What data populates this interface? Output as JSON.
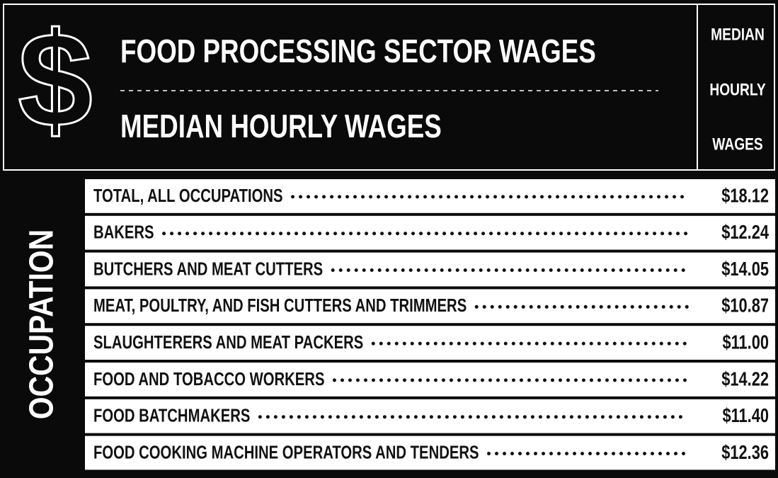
{
  "header": {
    "symbol": "$",
    "title": "FOOD PROCESSING SECTOR WAGES",
    "subtitle": "MEDIAN HOURLY WAGES",
    "column_header": [
      "MEDIAN",
      "HOURLY",
      "WAGES"
    ]
  },
  "table": {
    "row_header": "OCCUPATION",
    "rows": [
      [
        "TOTAL, ALL OCCUPATIONS",
        "$18.12"
      ],
      [
        "BAKERS",
        "$12.24"
      ],
      [
        "BUTCHERS AND MEAT CUTTERS",
        "$14.05"
      ],
      [
        "MEAT, POULTRY, AND FISH CUTTERS AND TRIMMERS",
        "$10.87"
      ],
      [
        "SLAUGHTERERS AND MEAT PACKERS",
        "$11.00"
      ],
      [
        "FOOD AND TOBACCO WORKERS",
        "$14.22"
      ],
      [
        "FOOD BATCHMAKERS",
        "$11.40"
      ],
      [
        "FOOD COOKING MACHINE OPERATORS AND TENDERS",
        "$12.36"
      ]
    ]
  }
}
